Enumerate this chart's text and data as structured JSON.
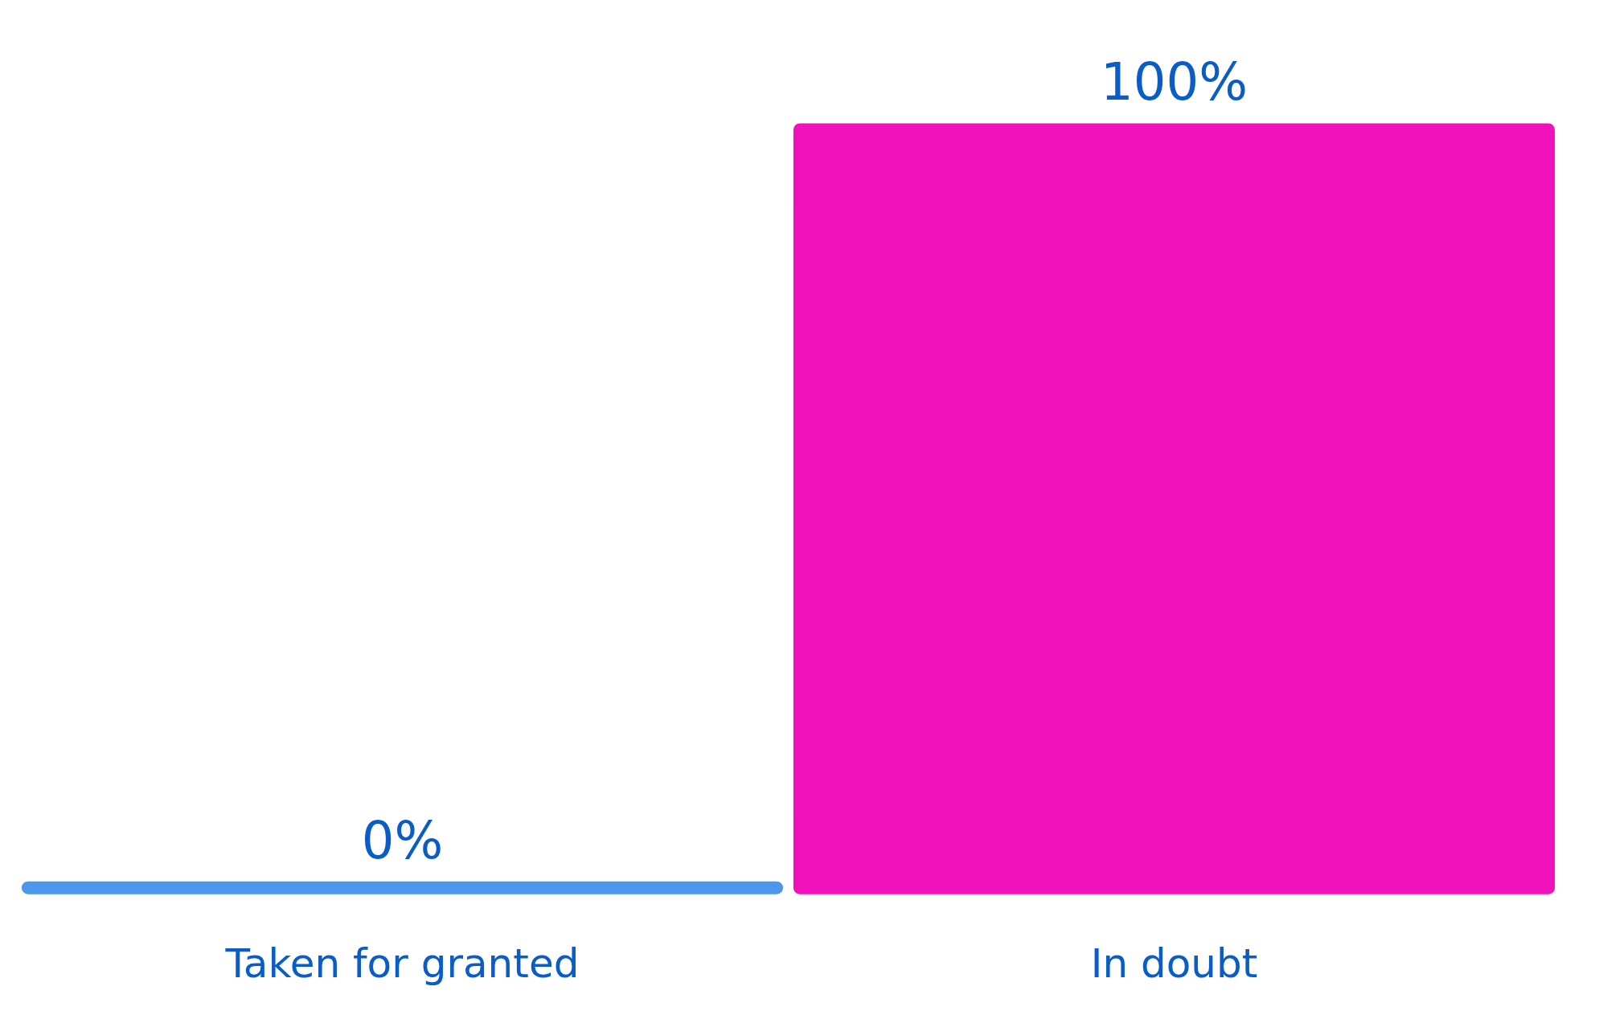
{
  "chart_data": {
    "type": "bar",
    "categories": [
      "Taken for granted",
      "In doubt"
    ],
    "values": [
      0,
      100
    ],
    "colors": [
      "#4c97ec",
      "#ef12bb"
    ],
    "value_labels": [
      "0%",
      "100%"
    ],
    "grid": false
  }
}
